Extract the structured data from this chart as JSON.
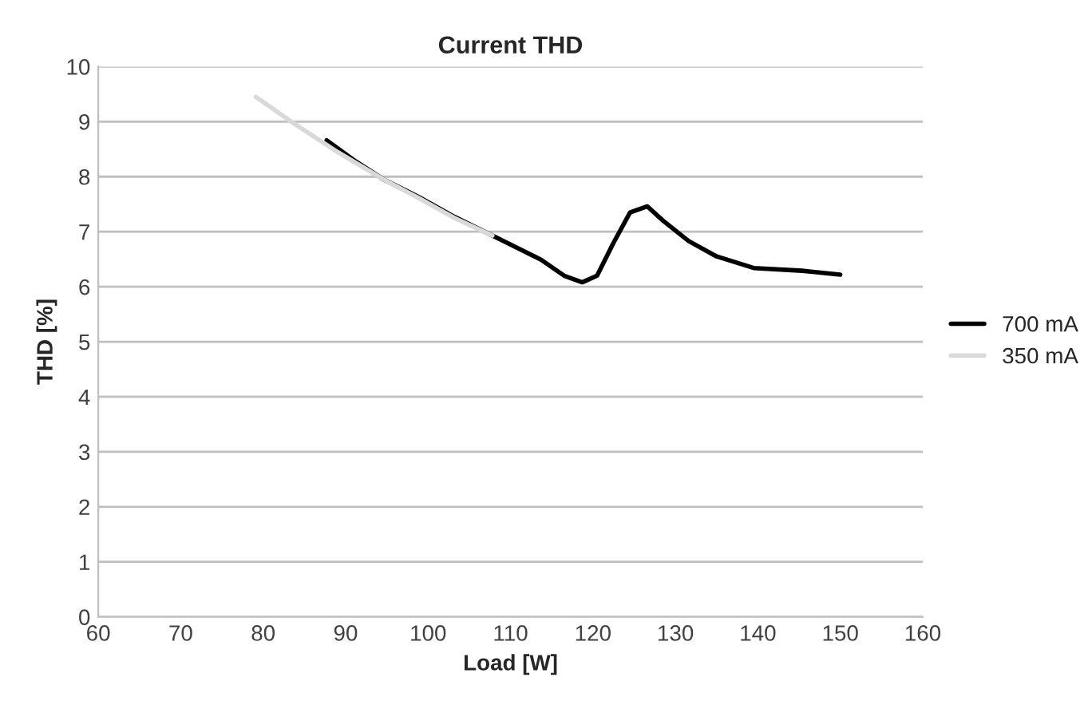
{
  "chart_data": {
    "type": "line",
    "title": "Current THD",
    "xlabel": "Load [W]",
    "ylabel": "THD [%]",
    "series": [
      {
        "name": "700 mA",
        "color": "#000000",
        "x": [
          87.7,
          91,
          94.6,
          99,
          103.2,
          107.8,
          113.7,
          116.5,
          118.7,
          120.5,
          122.5,
          124.5,
          126.6,
          128.5,
          131.6,
          135,
          139.5,
          145.4,
          150
        ],
        "values": [
          8.66,
          8.3,
          7.95,
          7.62,
          7.27,
          6.93,
          6.49,
          6.2,
          6.08,
          6.2,
          6.8,
          7.35,
          7.46,
          7.2,
          6.83,
          6.55,
          6.34,
          6.29,
          6.22
        ]
      },
      {
        "name": "350 mA",
        "color": "#d9d9d9",
        "x": [
          79.1,
          83.4,
          89,
          94.6,
          99,
          103.2,
          107.8
        ],
        "values": [
          9.45,
          9.0,
          8.45,
          7.95,
          7.6,
          7.25,
          6.93
        ]
      }
    ],
    "xlim": [
      60,
      160
    ],
    "xticks": [
      60,
      70,
      80,
      90,
      100,
      110,
      120,
      130,
      140,
      150,
      160
    ],
    "ylim": [
      0,
      10
    ],
    "yticks": [
      0,
      1,
      2,
      3,
      4,
      5,
      6,
      7,
      8,
      9,
      10
    ],
    "grid": "y",
    "legend": "right",
    "marker": "none",
    "line_style": "solid"
  }
}
